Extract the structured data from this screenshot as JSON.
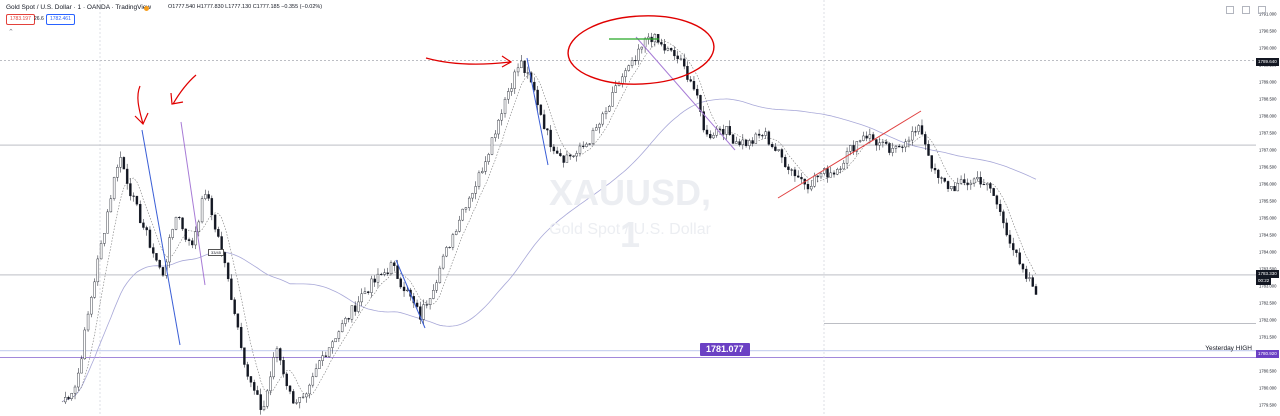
{
  "header": {
    "title": "Gold Spot / U.S. Dollar · 1 · OANDA · TradingView",
    "ohlc": "O1777.540 H1777.830 L1777.130 C1777.185 −0.355 (−0.02%)",
    "bid": "1783.197",
    "spread": "26.6",
    "ask": "1782.461",
    "collapse_glyph": "⌃"
  },
  "watermark": {
    "symbol": "XAUUSD, 1",
    "description": "Gold Spot / U.S. Dollar"
  },
  "annotations": {
    "yesterday_high_label": "Yesterday HIGH",
    "level_label": "1781.077",
    "small_box_label": "33/45"
  },
  "price_tags": {
    "upper": "1789.640",
    "current": "1783.330",
    "current_sub": "00:22",
    "yesterday_high": "1780.920"
  },
  "colors": {
    "up_candle": "#ffffff",
    "down_candle": "#131722",
    "blue_trendline": "#3a5ed6",
    "red_trendline": "#e04040",
    "purple_trendline": "#a77bd6",
    "green_marker": "#26a626",
    "ma_dotted": "#7a7a7a",
    "ma_slow": "#a8a8d8",
    "label_purple": "#6b40c4",
    "circle_red": "#e00000"
  },
  "chart_data": {
    "type": "candlestick",
    "title": "XAUUSD, 1",
    "ylabel": "",
    "xlabel": "",
    "ylim": [
      1779.3,
      1791.3
    ],
    "y_ticks": [
      "1779.500",
      "1780.000",
      "1780.500",
      "1781.000",
      "1781.500",
      "1782.000",
      "1782.500",
      "1783.000",
      "1783.500",
      "1784.000",
      "1784.500",
      "1785.000",
      "1785.500",
      "1786.000",
      "1786.500",
      "1787.000",
      "1787.500",
      "1788.000",
      "1788.500",
      "1789.000",
      "1789.500",
      "1790.000",
      "1790.500",
      "1791.000"
    ],
    "close_path": [
      1779.6,
      1780.1,
      1782.6,
      1784.8,
      1786.9,
      1785.5,
      1784.4,
      1783.3,
      1785.2,
      1784.1,
      1785.8,
      1784.3,
      1782.4,
      1780.3,
      1779.3,
      1781.2,
      1779.7,
      1779.6,
      1780.8,
      1781.5,
      1782.1,
      1782.8,
      1783.2,
      1783.6,
      1782.9,
      1782.1,
      1783.1,
      1784.2,
      1785.3,
      1786.1,
      1787.3,
      1788.6,
      1789.6,
      1788.7,
      1787.3,
      1786.8,
      1786.9,
      1787.4,
      1788.1,
      1789.1,
      1789.6,
      1790.4,
      1790.0,
      1789.7,
      1789.0,
      1787.4,
      1787.7,
      1787.3,
      1787.2,
      1787.5,
      1786.9,
      1786.4,
      1786.0,
      1786.3,
      1786.4,
      1787.0,
      1787.5,
      1787.2,
      1786.9,
      1787.4,
      1787.6,
      1786.2,
      1785.9,
      1786.0,
      1786.2,
      1785.7,
      1784.6,
      1783.4,
      1782.9
    ],
    "moving_averages": [
      {
        "style": "dotted"
      },
      {
        "style": "slow"
      }
    ],
    "horizontal_levels": [
      1789.64,
      1787.15,
      1783.33,
      1781.9,
      1781.1,
      1780.9
    ],
    "current_price": 1783.33,
    "yesterday_high": 1780.92,
    "grid": false,
    "legend": "none"
  }
}
